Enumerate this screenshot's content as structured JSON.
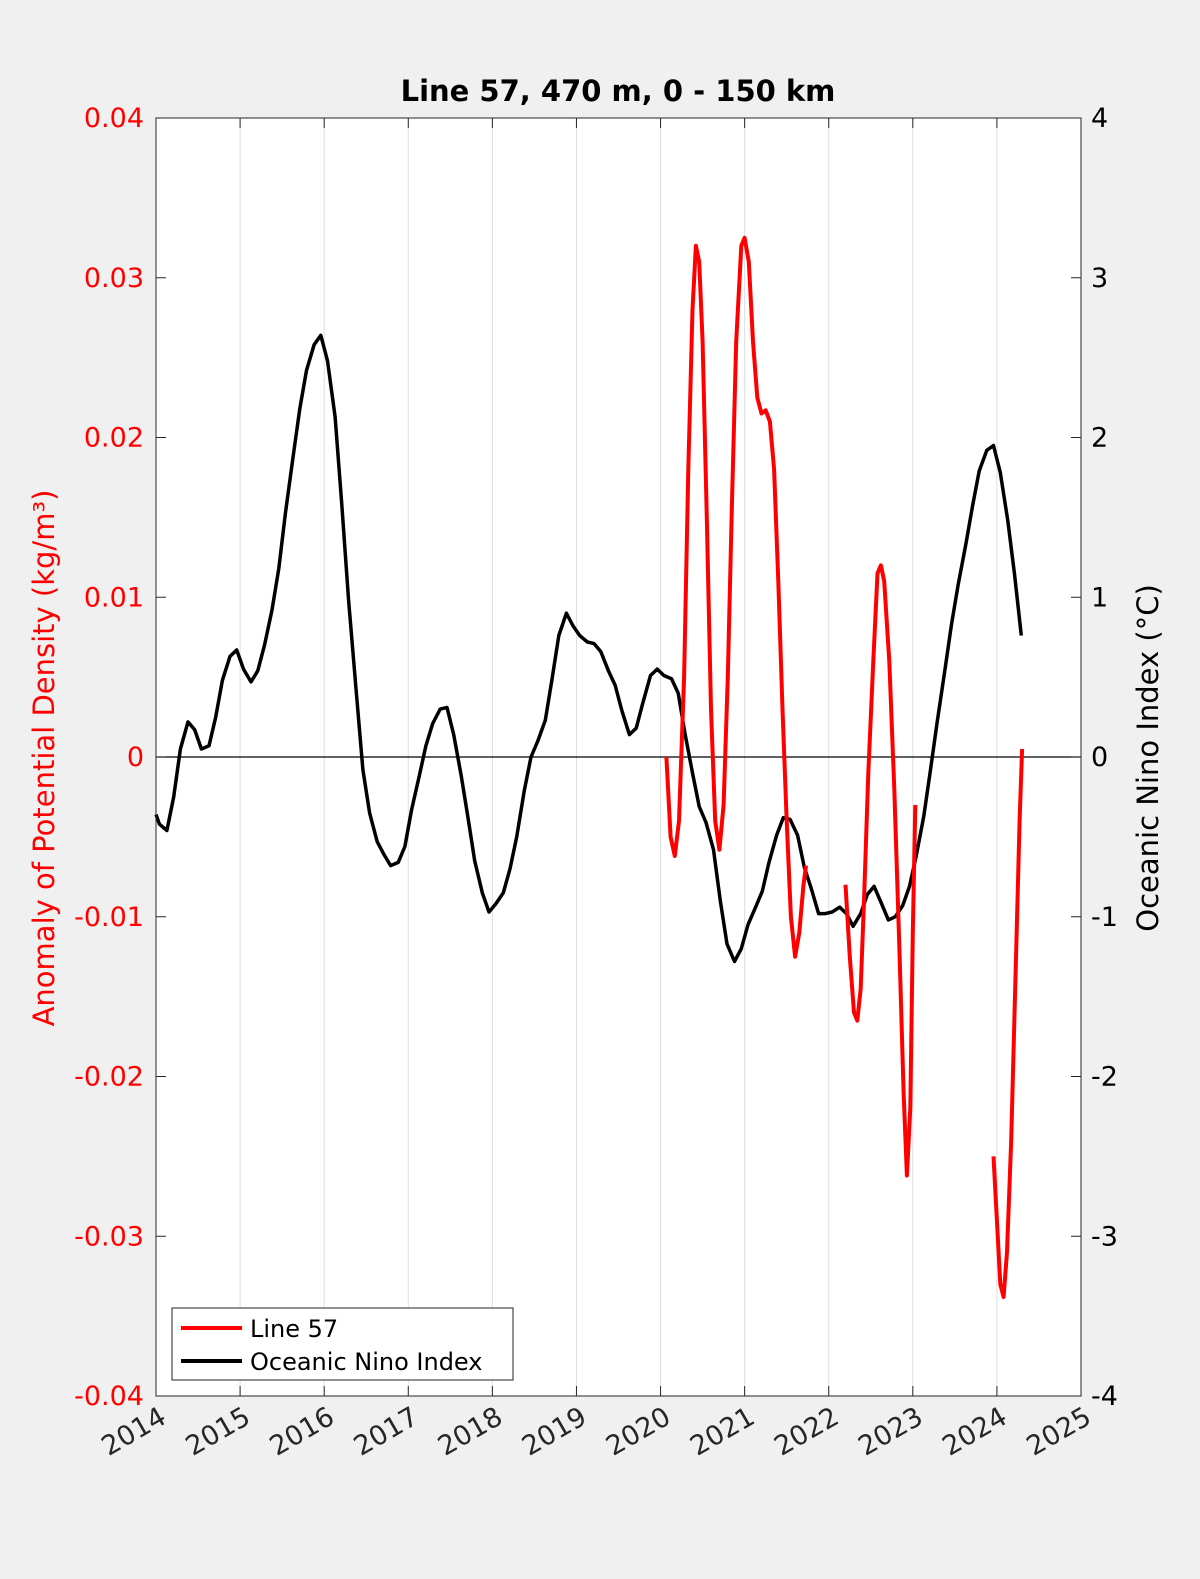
{
  "colors": {
    "background": "#f0f0f0",
    "plot_background": "#ffffff",
    "line57": "#ff0000",
    "oni": "#000000",
    "left_axis": "#ff0000",
    "right_axis": "#000000",
    "grid": "#dedede"
  },
  "chart_data": {
    "type": "line",
    "title": "Line 57, 470 m, 0 - 150 km",
    "ylabel_left": "Anomaly of Potential Density (kg/m³)",
    "ylabel_right": "Oceanic Nino Index (°C)",
    "xlabel": "",
    "xlim": [
      2014,
      2025
    ],
    "ylim_left": [
      -0.04,
      0.04
    ],
    "ylim_right": [
      -4,
      4
    ],
    "x_ticks": [
      "2014",
      "2015",
      "2016",
      "2017",
      "2018",
      "2019",
      "2020",
      "2021",
      "2022",
      "2023",
      "2024",
      "2025"
    ],
    "y_ticks_left": [
      "0.04",
      "0.03",
      "0.02",
      "0.01",
      "0",
      "-0.01",
      "-0.02",
      "-0.03",
      "-0.04"
    ],
    "y_ticks_right": [
      "4",
      "3",
      "2",
      "1",
      "0",
      "-1",
      "-2",
      "-3",
      "-4"
    ],
    "grid": "vertical lines at each year",
    "zero_line": true,
    "legend": {
      "location": "bottom-left",
      "entries": [
        "Line 57",
        "Oceanic Nino Index"
      ]
    },
    "series": [
      {
        "name": "Line 57",
        "axis": "left",
        "segments": [
          [
            [
              2020.07,
              0.0
            ],
            [
              2020.12,
              -0.005
            ],
            [
              2020.17,
              -0.0062
            ],
            [
              2020.22,
              -0.004
            ],
            [
              2020.28,
              0.005
            ],
            [
              2020.33,
              0.018
            ],
            [
              2020.38,
              0.028
            ],
            [
              2020.42,
              0.032
            ],
            [
              2020.46,
              0.031
            ],
            [
              2020.5,
              0.026
            ],
            [
              2020.55,
              0.015
            ],
            [
              2020.6,
              0.003
            ],
            [
              2020.65,
              -0.004
            ],
            [
              2020.7,
              -0.0058
            ],
            [
              2020.75,
              -0.003
            ],
            [
              2020.8,
              0.005
            ],
            [
              2020.85,
              0.016
            ],
            [
              2020.9,
              0.026
            ],
            [
              2020.96,
              0.032
            ],
            [
              2021.0,
              0.0325
            ],
            [
              2021.05,
              0.031
            ],
            [
              2021.1,
              0.026
            ],
            [
              2021.15,
              0.0225
            ],
            [
              2021.2,
              0.0215
            ],
            [
              2021.25,
              0.0217
            ],
            [
              2021.3,
              0.021
            ],
            [
              2021.35,
              0.018
            ],
            [
              2021.4,
              0.011
            ],
            [
              2021.45,
              0.003
            ],
            [
              2021.5,
              -0.004
            ],
            [
              2021.55,
              -0.01
            ],
            [
              2021.6,
              -0.0125
            ],
            [
              2021.65,
              -0.011
            ],
            [
              2021.7,
              -0.008
            ],
            [
              2021.73,
              -0.0068
            ]
          ],
          [
            [
              2022.2,
              -0.008
            ],
            [
              2022.25,
              -0.0125
            ],
            [
              2022.3,
              -0.016
            ],
            [
              2022.34,
              -0.0165
            ],
            [
              2022.38,
              -0.0145
            ],
            [
              2022.42,
              -0.009
            ],
            [
              2022.47,
              -0.001
            ],
            [
              2022.53,
              0.006
            ],
            [
              2022.58,
              0.0115
            ],
            [
              2022.62,
              0.012
            ],
            [
              2022.66,
              0.011
            ],
            [
              2022.72,
              0.006
            ],
            [
              2022.78,
              -0.002
            ],
            [
              2022.84,
              -0.012
            ],
            [
              2022.89,
              -0.021
            ],
            [
              2022.93,
              -0.0262
            ],
            [
              2022.97,
              -0.022
            ],
            [
              2023.0,
              -0.011
            ],
            [
              2023.03,
              -0.003
            ]
          ],
          [
            [
              2023.96,
              -0.025
            ],
            [
              2024.0,
              -0.029
            ],
            [
              2024.04,
              -0.033
            ],
            [
              2024.08,
              -0.0338
            ],
            [
              2024.12,
              -0.031
            ],
            [
              2024.17,
              -0.024
            ],
            [
              2024.22,
              -0.014
            ],
            [
              2024.27,
              -0.004
            ],
            [
              2024.3,
              0.0005
            ]
          ]
        ]
      },
      {
        "name": "Oceanic Nino Index",
        "axis": "right",
        "points": [
          [
            2014.0,
            -0.36
          ],
          [
            2014.04,
            -0.42
          ],
          [
            2014.13,
            -0.46
          ],
          [
            2014.21,
            -0.25
          ],
          [
            2014.29,
            0.05
          ],
          [
            2014.38,
            0.22
          ],
          [
            2014.46,
            0.17
          ],
          [
            2014.54,
            0.05
          ],
          [
            2014.63,
            0.07
          ],
          [
            2014.71,
            0.25
          ],
          [
            2014.79,
            0.48
          ],
          [
            2014.88,
            0.63
          ],
          [
            2014.96,
            0.67
          ],
          [
            2015.04,
            0.55
          ],
          [
            2015.13,
            0.47
          ],
          [
            2015.21,
            0.54
          ],
          [
            2015.29,
            0.7
          ],
          [
            2015.38,
            0.92
          ],
          [
            2015.46,
            1.18
          ],
          [
            2015.54,
            1.53
          ],
          [
            2015.63,
            1.88
          ],
          [
            2015.71,
            2.18
          ],
          [
            2015.79,
            2.42
          ],
          [
            2015.88,
            2.58
          ],
          [
            2015.96,
            2.64
          ],
          [
            2016.04,
            2.48
          ],
          [
            2016.13,
            2.13
          ],
          [
            2016.21,
            1.58
          ],
          [
            2016.29,
            0.98
          ],
          [
            2016.38,
            0.42
          ],
          [
            2016.46,
            -0.08
          ],
          [
            2016.54,
            -0.35
          ],
          [
            2016.63,
            -0.53
          ],
          [
            2016.71,
            -0.61
          ],
          [
            2016.79,
            -0.68
          ],
          [
            2016.88,
            -0.66
          ],
          [
            2016.96,
            -0.56
          ],
          [
            2017.04,
            -0.33
          ],
          [
            2017.13,
            -0.12
          ],
          [
            2017.21,
            0.07
          ],
          [
            2017.29,
            0.21
          ],
          [
            2017.38,
            0.3
          ],
          [
            2017.46,
            0.31
          ],
          [
            2017.54,
            0.14
          ],
          [
            2017.63,
            -0.12
          ],
          [
            2017.71,
            -0.38
          ],
          [
            2017.79,
            -0.65
          ],
          [
            2017.88,
            -0.85
          ],
          [
            2017.96,
            -0.97
          ],
          [
            2018.04,
            -0.92
          ],
          [
            2018.13,
            -0.85
          ],
          [
            2018.21,
            -0.7
          ],
          [
            2018.29,
            -0.5
          ],
          [
            2018.38,
            -0.21
          ],
          [
            2018.46,
            0.0
          ],
          [
            2018.54,
            0.1
          ],
          [
            2018.63,
            0.23
          ],
          [
            2018.71,
            0.49
          ],
          [
            2018.79,
            0.76
          ],
          [
            2018.88,
            0.9
          ],
          [
            2018.96,
            0.82
          ],
          [
            2019.04,
            0.76
          ],
          [
            2019.13,
            0.72
          ],
          [
            2019.21,
            0.71
          ],
          [
            2019.29,
            0.66
          ],
          [
            2019.38,
            0.54
          ],
          [
            2019.46,
            0.45
          ],
          [
            2019.54,
            0.29
          ],
          [
            2019.63,
            0.14
          ],
          [
            2019.71,
            0.18
          ],
          [
            2019.79,
            0.34
          ],
          [
            2019.88,
            0.51
          ],
          [
            2019.96,
            0.55
          ],
          [
            2020.04,
            0.51
          ],
          [
            2020.13,
            0.49
          ],
          [
            2020.21,
            0.4
          ],
          [
            2020.29,
            0.15
          ],
          [
            2020.38,
            -0.1
          ],
          [
            2020.46,
            -0.31
          ],
          [
            2020.54,
            -0.41
          ],
          [
            2020.63,
            -0.58
          ],
          [
            2020.71,
            -0.9
          ],
          [
            2020.79,
            -1.17
          ],
          [
            2020.88,
            -1.28
          ],
          [
            2020.96,
            -1.2
          ],
          [
            2021.04,
            -1.05
          ],
          [
            2021.13,
            -0.94
          ],
          [
            2021.21,
            -0.84
          ],
          [
            2021.29,
            -0.66
          ],
          [
            2021.38,
            -0.49
          ],
          [
            2021.46,
            -0.38
          ],
          [
            2021.54,
            -0.39
          ],
          [
            2021.63,
            -0.49
          ],
          [
            2021.71,
            -0.69
          ],
          [
            2021.79,
            -0.82
          ],
          [
            2021.88,
            -0.98
          ],
          [
            2021.96,
            -0.98
          ],
          [
            2022.04,
            -0.97
          ],
          [
            2022.13,
            -0.94
          ],
          [
            2022.21,
            -0.98
          ],
          [
            2022.29,
            -1.06
          ],
          [
            2022.38,
            -0.98
          ],
          [
            2022.46,
            -0.86
          ],
          [
            2022.54,
            -0.81
          ],
          [
            2022.63,
            -0.92
          ],
          [
            2022.71,
            -1.02
          ],
          [
            2022.79,
            -1.0
          ],
          [
            2022.88,
            -0.93
          ],
          [
            2022.96,
            -0.81
          ],
          [
            2023.04,
            -0.62
          ],
          [
            2023.13,
            -0.37
          ],
          [
            2023.21,
            -0.08
          ],
          [
            2023.29,
            0.22
          ],
          [
            2023.38,
            0.54
          ],
          [
            2023.46,
            0.83
          ],
          [
            2023.54,
            1.08
          ],
          [
            2023.63,
            1.33
          ],
          [
            2023.71,
            1.57
          ],
          [
            2023.79,
            1.79
          ],
          [
            2023.88,
            1.92
          ],
          [
            2023.96,
            1.95
          ],
          [
            2024.04,
            1.78
          ],
          [
            2024.13,
            1.48
          ],
          [
            2024.21,
            1.14
          ],
          [
            2024.29,
            0.76
          ]
        ]
      }
    ]
  }
}
